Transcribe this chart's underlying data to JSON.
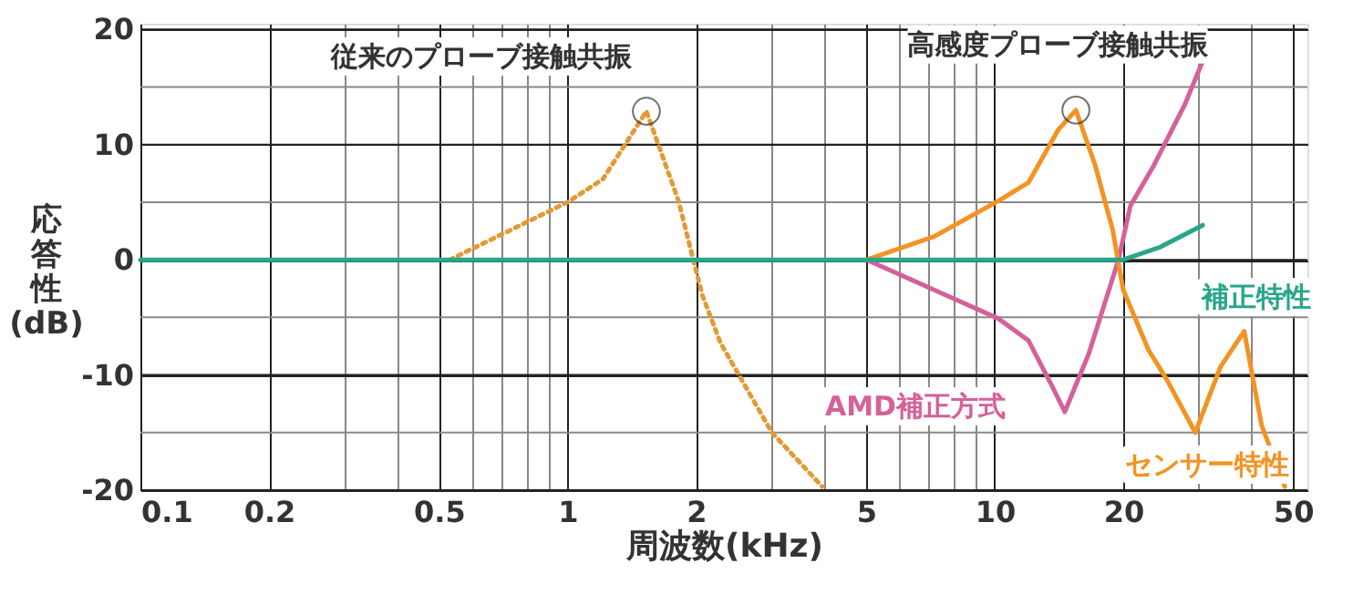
{
  "chart_data": {
    "type": "line",
    "xlabel": "周波数(kHz)",
    "ylabel": "応答性(dB)",
    "log": "x",
    "grid": true,
    "xlim": [
      0.1,
      54
    ],
    "ylim": [
      -20,
      20.5
    ],
    "xticks": [
      0.1,
      0.2,
      {
        "value": 0.3,
        "label": null
      },
      {
        "value": 0.4,
        "label": null
      },
      0.5,
      {
        "value": 0.6,
        "label": null
      },
      {
        "value": 0.7,
        "label": null
      },
      {
        "value": 0.8,
        "label": null
      },
      {
        "value": 0.9,
        "label": null
      },
      1,
      2,
      {
        "value": 3,
        "label": null
      },
      {
        "value": 4,
        "label": null
      },
      5,
      {
        "value": 6,
        "label": null
      },
      {
        "value": 7,
        "label": null
      },
      {
        "value": 8,
        "label": null
      },
      {
        "value": 9,
        "label": null
      },
      10,
      20,
      {
        "value": 30,
        "label": null
      },
      {
        "value": 40,
        "label": null
      },
      50
    ],
    "yticks": [
      -20,
      {
        "value": -15,
        "label": null
      },
      -10,
      {
        "value": -5,
        "label": null
      },
      0,
      {
        "value": 5,
        "label": null
      },
      10,
      {
        "value": 15,
        "label": null
      },
      20
    ],
    "series": [
      {
        "color": "#e39a35",
        "line_style": "dotted",
        "x": [
          0.53,
          1,
          1.21,
          1.53,
          1.82,
          1.97,
          2.07,
          2.28,
          3.01,
          3.95
        ],
        "values": [
          0,
          5,
          7,
          12.9,
          5.1,
          0,
          -3.1,
          -7.2,
          -15,
          -19.7
        ]
      },
      {
        "name": "AMD補正方式",
        "color": "#d6609a",
        "x": [
          5.02,
          7.2,
          10.2,
          12,
          13.6,
          14.6,
          16.6,
          19.5,
          20.8,
          23.6,
          27.9,
          30.9
        ],
        "values": [
          0,
          -2.6,
          -5.1,
          -7,
          -10.9,
          -13.2,
          -8.2,
          0,
          4.7,
          8.2,
          13.5,
          17.5
        ]
      },
      {
        "name": "センサー特性",
        "color": "#f39323",
        "x": [
          5.02,
          7.2,
          10.2,
          12,
          14.1,
          15.5,
          17.2,
          18.9,
          20,
          22.9,
          25.3,
          29.5,
          33.8,
          38.4,
          42.2,
          47.8
        ],
        "values": [
          0,
          2,
          5.1,
          6.7,
          11.3,
          13,
          8.2,
          2.6,
          -2.6,
          -7.8,
          -10.4,
          -15,
          -9.3,
          -6.2,
          -14.4,
          -19.7
        ]
      },
      {
        "name": "補正特性",
        "color": "#2aa58a",
        "x": [
          0.1,
          1,
          10,
          20,
          24.4,
          30.7
        ],
        "values": [
          0,
          0,
          0,
          0,
          1.1,
          3.0
        ]
      }
    ],
    "annotations": [
      {
        "text": "従来のプローブ接触共振",
        "x": 1.53,
        "y": 12.9
      },
      {
        "text": "高感度プローブ接触共振",
        "x": 15.5,
        "y": 13
      }
    ]
  }
}
